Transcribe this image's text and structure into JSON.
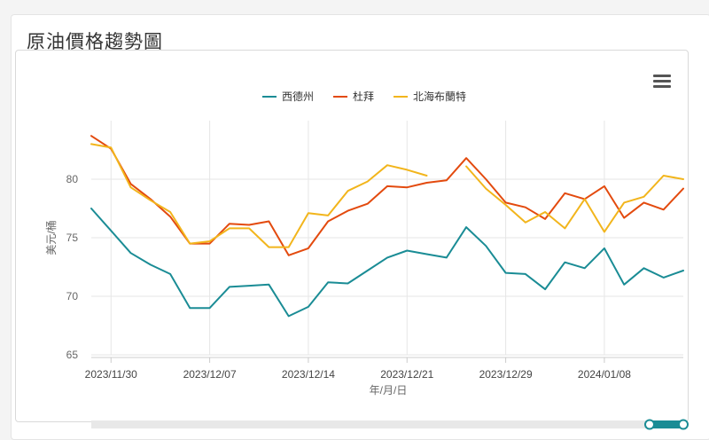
{
  "page": {
    "title": "原油價格趨勢圖"
  },
  "chart_data": {
    "type": "line",
    "title": "",
    "xlabel": "年/月/日",
    "ylabel": "美元/桶",
    "ylim": [
      65,
      85
    ],
    "yticks": [
      65,
      70,
      75,
      80
    ],
    "xtick_labels": [
      "2023/11/30",
      "2023/12/07",
      "2023/12/14",
      "2023/12/21",
      "2023/12/29",
      "2024/01/08"
    ],
    "xtick_index": [
      1,
      6,
      11,
      16,
      21,
      26
    ],
    "grid": true,
    "legend_position": "top-center",
    "series": [
      {
        "name": "西德州",
        "color": "#1a8c95",
        "values": [
          77.5,
          75.6,
          73.7,
          72.7,
          71.9,
          69.0,
          69.0,
          70.8,
          70.9,
          71.0,
          68.3,
          69.1,
          71.2,
          71.1,
          72.2,
          73.3,
          73.9,
          73.6,
          73.3,
          75.9,
          74.3,
          72.0,
          71.9,
          70.6,
          72.9,
          72.4,
          74.1,
          71.0,
          72.4,
          71.6,
          72.2
        ]
      },
      {
        "name": "杜拜",
        "color": "#e34a0e",
        "values": [
          83.7,
          82.6,
          79.6,
          78.3,
          76.8,
          74.5,
          74.5,
          76.2,
          76.1,
          76.4,
          73.5,
          74.1,
          76.4,
          77.3,
          77.9,
          79.4,
          79.3,
          79.7,
          79.9,
          81.8,
          80.0,
          78.0,
          77.6,
          76.6,
          78.8,
          78.3,
          79.4,
          76.7,
          78.0,
          77.4,
          79.2
        ]
      },
      {
        "name": "北海布蘭特",
        "color": "#f2b51c",
        "values": [
          83.0,
          82.7,
          79.3,
          78.2,
          77.2,
          74.5,
          74.7,
          75.8,
          75.8,
          74.2,
          74.2,
          77.1,
          76.9,
          79.0,
          79.8,
          81.2,
          80.8,
          80.3,
          null,
          81.1,
          79.2,
          77.8,
          76.3,
          77.2,
          75.8,
          78.3,
          75.5,
          78.0,
          78.5,
          80.3,
          80.0
        ]
      }
    ]
  }
}
